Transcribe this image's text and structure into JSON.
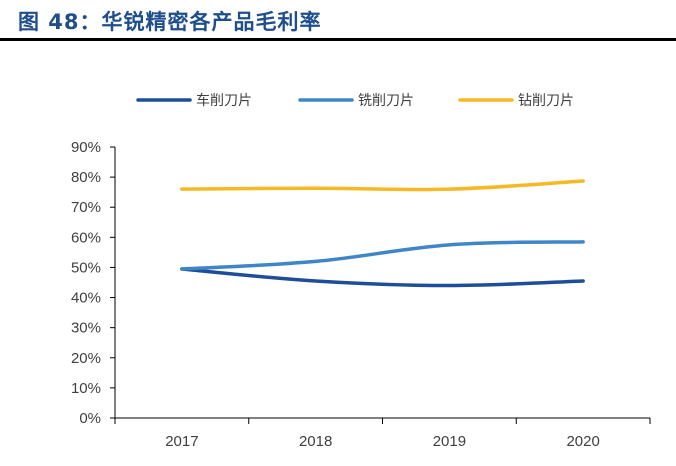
{
  "figure": {
    "title": "图 48：华锐精密各产品毛利率"
  },
  "chart_data": {
    "type": "line",
    "title": "",
    "xlabel": "",
    "ylabel": "",
    "categories": [
      "2017",
      "2018",
      "2019",
      "2020"
    ],
    "ylim": [
      0,
      90
    ],
    "yticks": [
      "0%",
      "10%",
      "20%",
      "30%",
      "40%",
      "50%",
      "60%",
      "70%",
      "80%",
      "90%"
    ],
    "grid": false,
    "legend_position": "top",
    "series": [
      {
        "name": "车削刀片",
        "color": "#1f4e99",
        "values": [
          49.5,
          45.5,
          44.0,
          45.5
        ]
      },
      {
        "name": "铣削刀片",
        "color": "#3f86c8",
        "values": [
          49.5,
          52.0,
          57.5,
          58.5
        ]
      },
      {
        "name": "钻削刀片",
        "color": "#f7b824",
        "values": [
          76.0,
          76.3,
          76.0,
          78.7
        ]
      }
    ]
  }
}
